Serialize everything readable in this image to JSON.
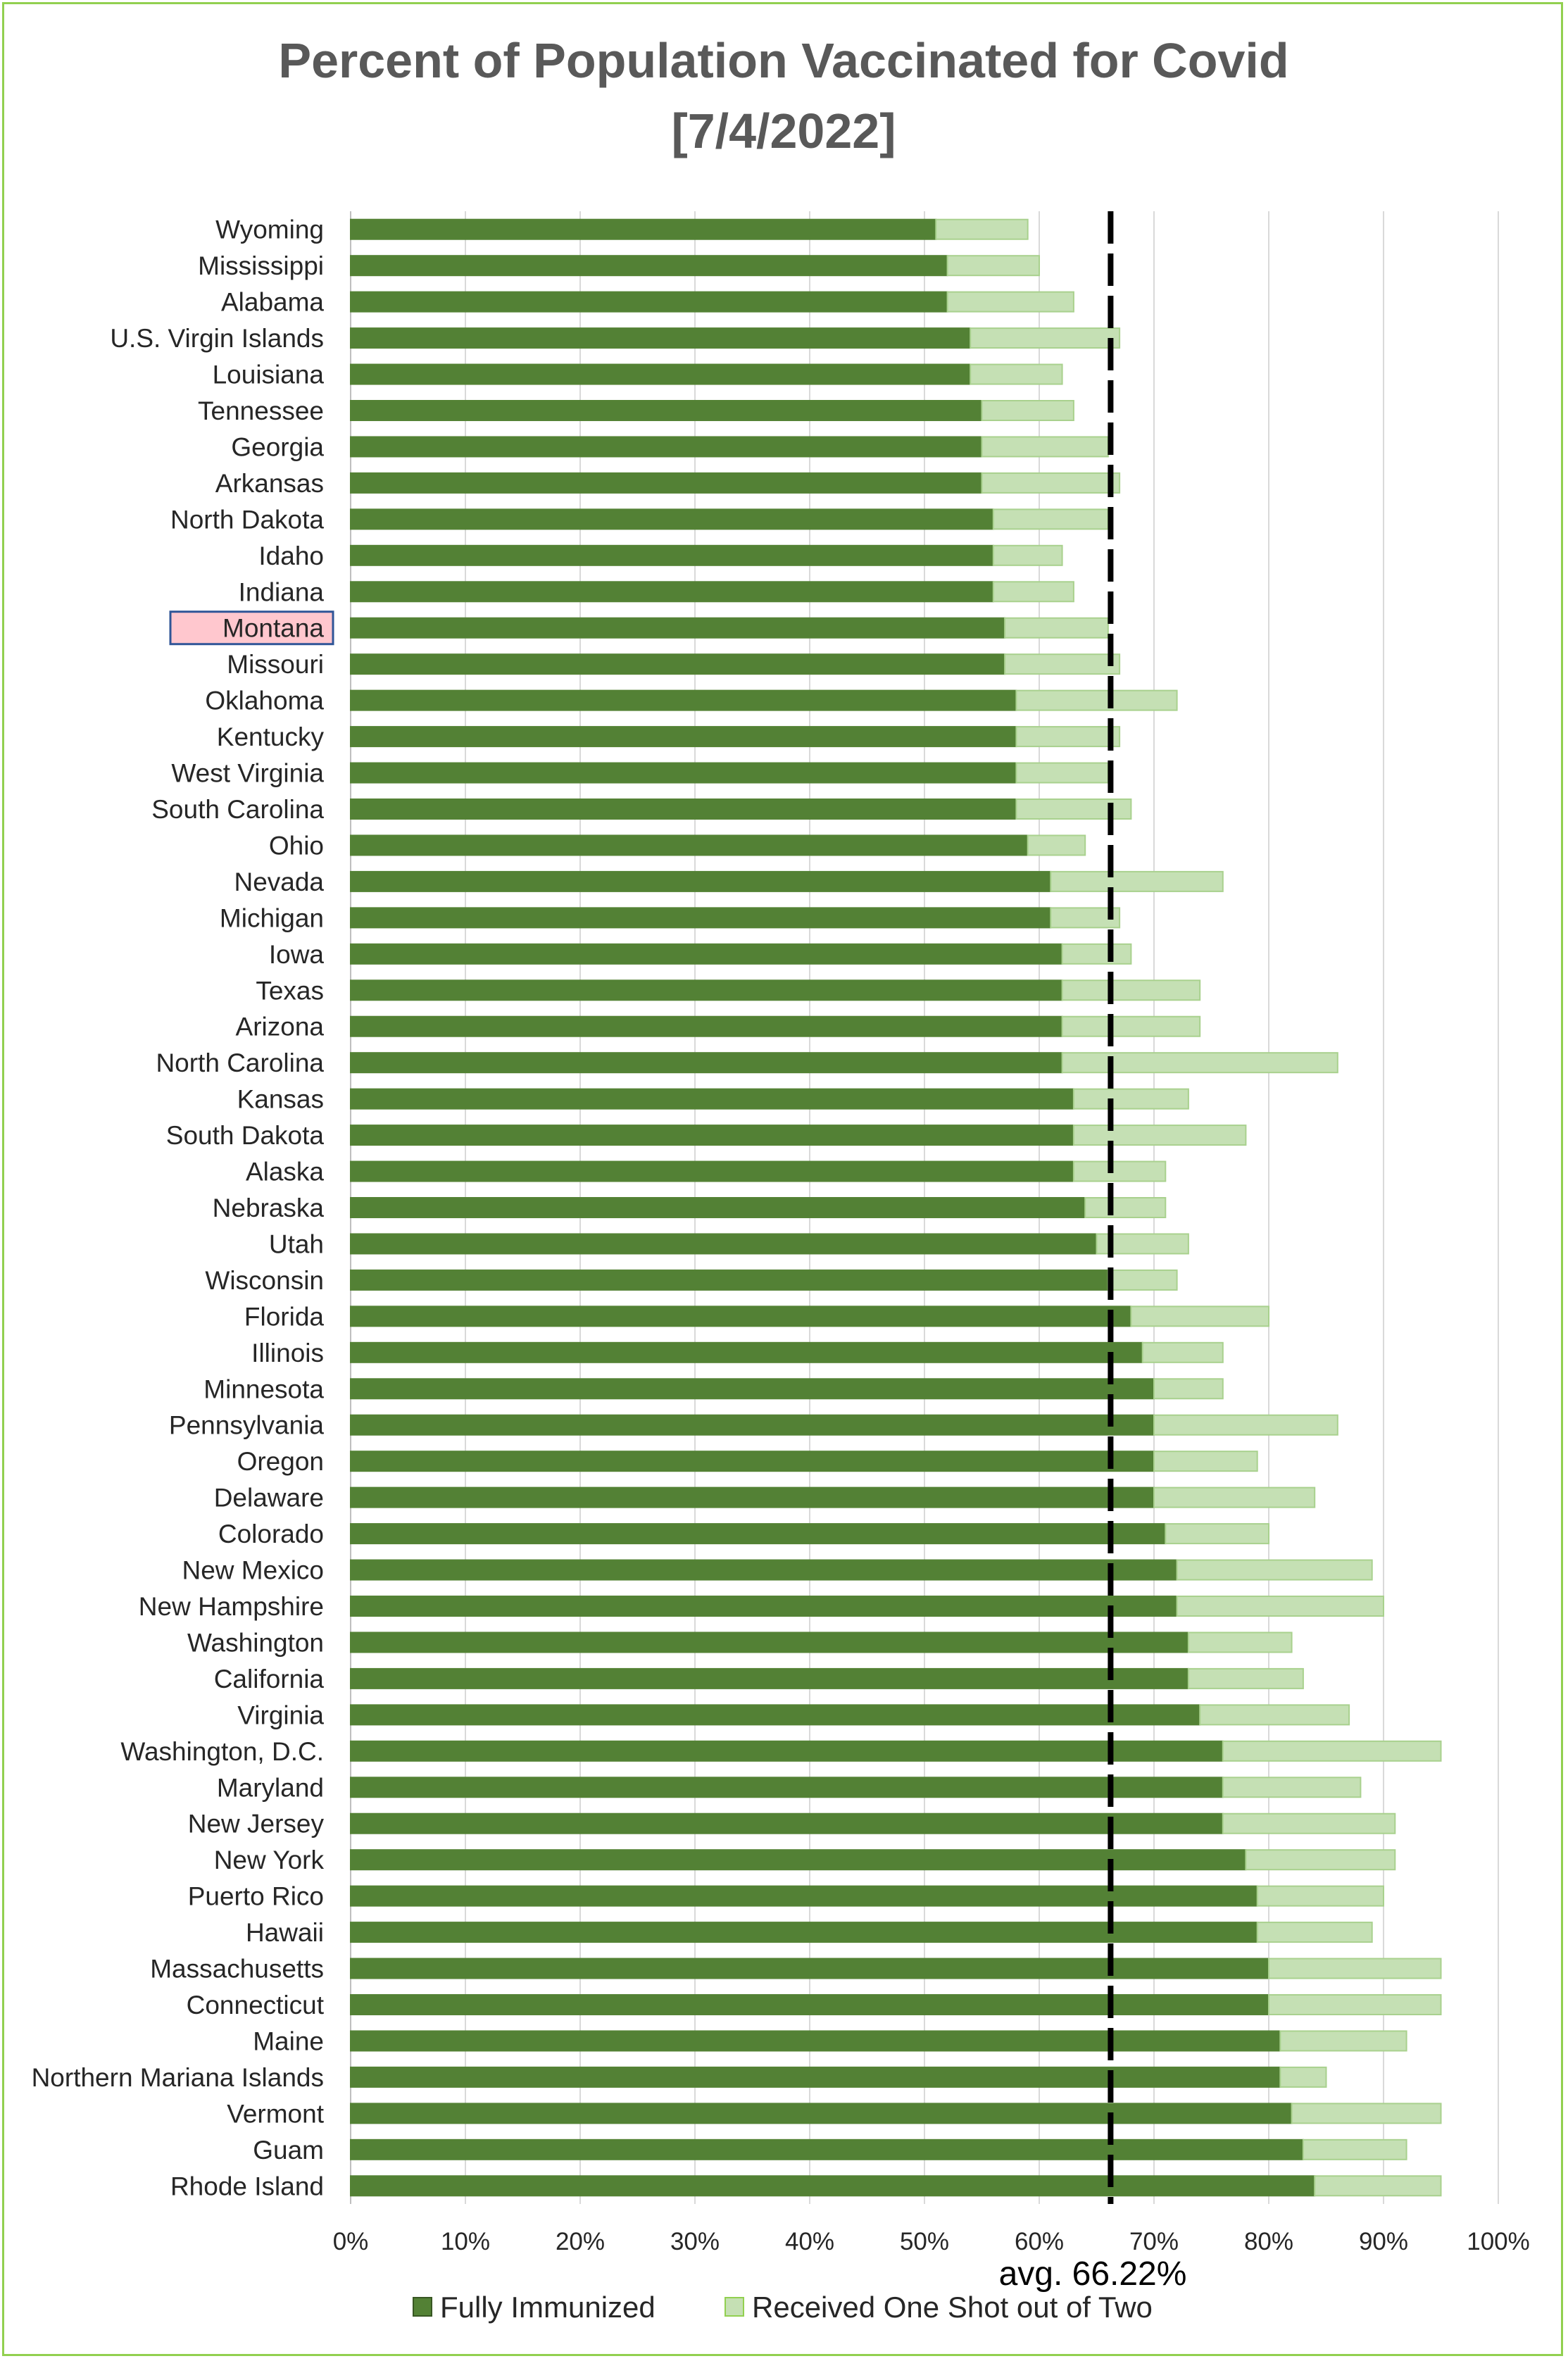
{
  "chart_data": {
    "type": "bar",
    "orientation": "horizontal",
    "stacked": true,
    "title_line1": "Percent of Population Vaccinated for Covid",
    "title_line2": "[7/4/2022]",
    "categories": [
      "Wyoming",
      "Mississippi",
      "Alabama",
      "U.S. Virgin Islands",
      "Louisiana",
      "Tennessee",
      "Georgia",
      "Arkansas",
      "North Dakota",
      "Idaho",
      "Indiana",
      "Montana",
      "Missouri",
      "Oklahoma",
      "Kentucky",
      "West Virginia",
      "South Carolina",
      "Ohio",
      "Nevada",
      "Michigan",
      "Iowa",
      "Texas",
      "Arizona",
      "North Carolina",
      "Kansas",
      "South Dakota",
      "Alaska",
      "Nebraska",
      "Utah",
      "Wisconsin",
      "Florida",
      "Illinois",
      "Minnesota",
      "Pennsylvania",
      "Oregon",
      "Delaware",
      "Colorado",
      "New Mexico",
      "New Hampshire",
      "Washington",
      "California",
      "Virginia",
      "Washington, D.C.",
      "Maryland",
      "New Jersey",
      "New York",
      "Puerto Rico",
      "Hawaii",
      "Massachusetts",
      "Connecticut",
      "Maine",
      "Northern Mariana Islands",
      "Vermont",
      "Guam",
      "Rhode Island"
    ],
    "highlighted_category": "Montana",
    "series": [
      {
        "name": "Fully Immunized",
        "color": "#538135",
        "values": [
          51,
          52,
          52,
          54,
          54,
          55,
          55,
          55,
          56,
          56,
          56,
          57,
          57,
          58,
          58,
          58,
          58,
          59,
          61,
          61,
          62,
          62,
          62,
          62,
          63,
          63,
          63,
          64,
          65,
          66,
          68,
          69,
          70,
          70,
          70,
          70,
          71,
          72,
          72,
          73,
          73,
          74,
          76,
          76,
          76,
          78,
          79,
          79,
          80,
          80,
          81,
          81,
          82,
          83,
          84
        ]
      },
      {
        "name": "Received One Shot out of Two",
        "color": "#c5e0b4",
        "values": [
          8,
          8,
          11,
          13,
          8,
          8,
          11,
          12,
          10,
          6,
          7,
          9,
          10,
          14,
          9,
          8,
          10,
          5,
          15,
          6,
          6,
          12,
          12,
          24,
          10,
          15,
          8,
          7,
          8,
          6,
          12,
          7,
          6,
          16,
          9,
          14,
          9,
          17,
          18,
          9,
          10,
          13,
          19,
          12,
          15,
          13,
          11,
          10,
          15,
          15,
          11,
          4,
          13,
          9,
          11
        ]
      }
    ],
    "average": 66.22,
    "average_label": "avg. 66.22%",
    "x_ticks": [
      "0%",
      "10%",
      "20%",
      "30%",
      "40%",
      "50%",
      "60%",
      "70%",
      "80%",
      "90%",
      "100%"
    ],
    "xlim": [
      0,
      100
    ],
    "grid": true,
    "legend_position": "bottom"
  }
}
